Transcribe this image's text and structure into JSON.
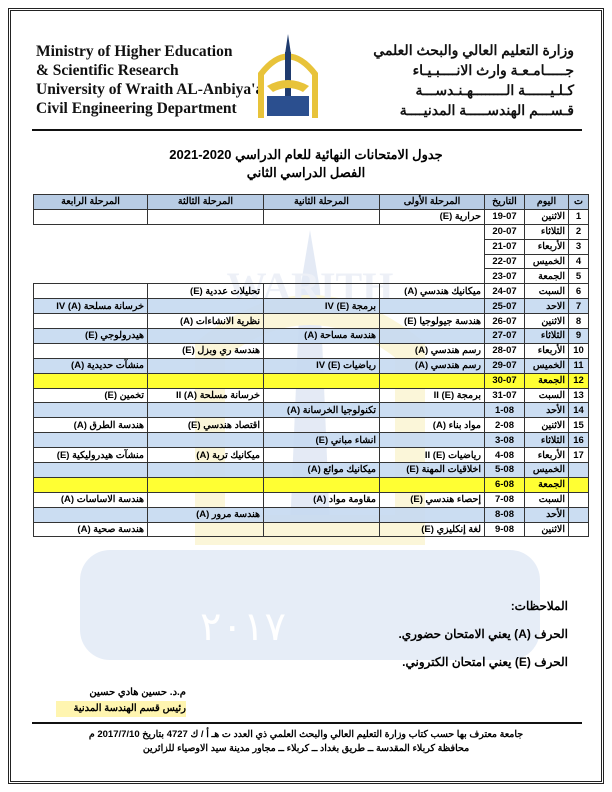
{
  "header": {
    "english_lines": [
      "Ministry of Higher Education",
      "& Scientific Research",
      "University of Wraith AL-Anbiya'a",
      "Civil Engineering Department"
    ],
    "arabic_lines": [
      "وزارة التعليم العالي والبحث العلمي",
      "جـــــامـعـة وارث الانــــبـيـاء",
      "كـلـيــــــة الــــــــهـنـدســـة",
      "قـســـم الهندســـــة المدنيــــة"
    ]
  },
  "title": {
    "line1": "جدول الامتحانات النهائية للعام الدراسي 2020-2021",
    "line2": "الفصل الدراسي الثاني"
  },
  "table": {
    "headers": [
      "ت",
      "اليوم",
      "التاريخ",
      "المرحلة الأولى",
      "المرحلة الثانية",
      "المرحلة الثالثة",
      "المرحلة الرابعة"
    ],
    "rows": [
      {
        "n": "1",
        "day": "الاثنين",
        "date": "19-07",
        "s1": "حرارية (E)",
        "s2": "",
        "s3": "",
        "s4": "",
        "style": ""
      },
      {
        "n": "2",
        "day": "الثلاثاء",
        "date": "20-07",
        "s1": "",
        "s2": "",
        "s3": "",
        "s4": "",
        "style": "noborder"
      },
      {
        "n": "3",
        "day": "الأربعاء",
        "date": "21-07",
        "s1": "",
        "s2": "",
        "s3": "",
        "s4": "",
        "style": "noborder"
      },
      {
        "n": "4",
        "day": "الخميس",
        "date": "22-07",
        "s1": "",
        "s2": "",
        "s3": "",
        "s4": "",
        "style": "noborder"
      },
      {
        "n": "5",
        "day": "الجمعة",
        "date": "23-07",
        "s1": "",
        "s2": "",
        "s3": "",
        "s4": "",
        "style": "noborder"
      },
      {
        "n": "6",
        "day": "السبت",
        "date": "24-07",
        "s1": "ميكانيك هندسي (A)",
        "s2": "",
        "s3": "تحليلات عددية (E)",
        "s4": "",
        "style": ""
      },
      {
        "n": "7",
        "day": "الاحد",
        "date": "25-07",
        "s1": "",
        "s2": "برمجة IV (E)",
        "s3": "",
        "s4": "خرسانة مسلحة IV (A)",
        "style": "blue"
      },
      {
        "n": "8",
        "day": "الاثنين",
        "date": "26-07",
        "s1": "هندسة جيولوجيا (E)",
        "s2": "",
        "s3": "نظرية الانشاءات (A)",
        "s4": "",
        "style": ""
      },
      {
        "n": "9",
        "day": "الثلاثاء",
        "date": "27-07",
        "s1": "",
        "s2": "هندسة مساحة (A)",
        "s3": "",
        "s4": "هيدرولوجي (E)",
        "style": "blue"
      },
      {
        "n": "10",
        "day": "الأربعاء",
        "date": "28-07",
        "s1": "رسم هندسي (A)",
        "s2": "",
        "s3": "هندسة ري وبزل (E)",
        "s4": "",
        "style": ""
      },
      {
        "n": "11",
        "day": "الخميس",
        "date": "29-07",
        "s1": "رسم هندسي (A)",
        "s2": "رياضيات IV (E)",
        "s3": "",
        "s4": "منشآت حديدية (A)",
        "style": "blue"
      },
      {
        "n": "12",
        "day": "الجمعة",
        "date": "30-07",
        "s1": "",
        "s2": "",
        "s3": "",
        "s4": "",
        "style": "yellow"
      },
      {
        "n": "13",
        "day": "السبت",
        "date": "31-07",
        "s1": "برمجة II (E)",
        "s2": "",
        "s3": "خرسانة مسلحة II (A)",
        "s4": "تخمين (E)",
        "style": ""
      },
      {
        "n": "14",
        "day": "الأحد",
        "date": "1-08",
        "s1": "",
        "s2": "تكنولوجيا الخرسانة (A)",
        "s3": "",
        "s4": "",
        "style": "blue"
      },
      {
        "n": "15",
        "day": "الاثنين",
        "date": "2-08",
        "s1": "مواد بناء (A)",
        "s2": "",
        "s3": "اقتصاد هندسي (E)",
        "s4": "هندسة الطرق (A)",
        "style": ""
      },
      {
        "n": "16",
        "day": "الثلاثاء",
        "date": "3-08",
        "s1": "",
        "s2": "انشاء مباني (E)",
        "s3": "",
        "s4": "",
        "style": "blue"
      },
      {
        "n": "17",
        "day": "الأربعاء",
        "date": "4-08",
        "s1": "رياضيات II (E)",
        "s2": "",
        "s3": "ميكانيك تربة (A)",
        "s4": "منشآت هيدروليكية (E)",
        "style": ""
      },
      {
        "n": "",
        "day": "الخميس",
        "date": "5-08",
        "s1": "اخلاقيات المهنة (E)",
        "s2": "ميكانيك موائع (A)",
        "s3": "",
        "s4": "",
        "style": "blue"
      },
      {
        "n": "",
        "day": "الجمعة",
        "date": "6-08",
        "s1": "",
        "s2": "",
        "s3": "",
        "s4": "",
        "style": "yellow"
      },
      {
        "n": "",
        "day": "السبت",
        "date": "7-08",
        "s1": "إحصاء هندسي (E)",
        "s2": "مقاومة مواد (A)",
        "s3": "",
        "s4": "هندسة الاساسات (A)",
        "style": ""
      },
      {
        "n": "",
        "day": "الأحد",
        "date": "8-08",
        "s1": "",
        "s2": "",
        "s3": "هندسة مرور (A)",
        "s4": "",
        "style": "blue"
      },
      {
        "n": "",
        "day": "الاثنين",
        "date": "9-08",
        "s1": "لغة إنكليزي (E)",
        "s2": "",
        "s3": "",
        "s4": "هندسة صحية (A)",
        "style": ""
      }
    ]
  },
  "notes": {
    "title": "الملاحظات:",
    "items": [
      "الحرف (A) يعني الامتحان حضوري.",
      "الحرف (E) يعني امتحان الكتروني."
    ]
  },
  "signature": {
    "name": "م.د. حسين هادي حسين",
    "role": "رئيس قسم الهندسة المدنية"
  },
  "footer": {
    "line1": "جامعة معترف بها حسب كتاب وزارة التعليم العالي والبحث العلمي ذي العدد ت هـ أ / ك 4727 بتاريخ 2017/7/10 م",
    "line2": "محافظة كربلاء المقدسة ــ طريق بغداد ــ كربلاء ــ مجاور مدينة سيد الاوصياء للزائرين"
  },
  "watermark": {
    "text": "WARITH",
    "year": "٢٠١٧"
  },
  "colors": {
    "header_blue": "#b8cce4",
    "row_blue": "#c5d9f1",
    "row_yellow": "#ffff33",
    "logo_gold": "#e8c33a",
    "logo_navy": "#1f3b6e"
  }
}
